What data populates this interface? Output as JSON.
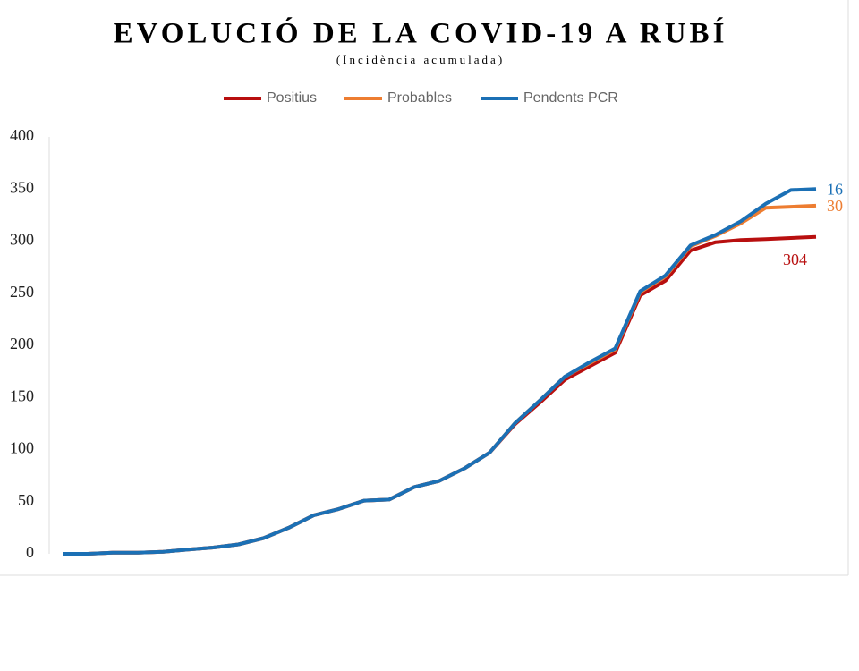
{
  "chart_data": {
    "type": "line",
    "stacked": true,
    "title": "EVOLUCIÓ DE LA COVID-19 A RUBÍ",
    "subtitle": "(Incidència acumulada)",
    "categories": [
      null,
      null,
      null,
      null,
      null,
      null,
      null,
      null,
      null,
      null,
      null,
      null,
      null,
      null,
      null,
      null,
      null,
      null,
      null,
      null,
      null,
      null,
      null,
      null,
      null,
      null,
      null,
      null,
      null,
      null,
      null
    ],
    "series": [
      {
        "name": "Positius",
        "color": "#b80f0f",
        "values": [
          0,
          0,
          1,
          1,
          2,
          4,
          6,
          9,
          15,
          25,
          37,
          43,
          51,
          52,
          64,
          70,
          82,
          97,
          124,
          145,
          167,
          180,
          193,
          248,
          262,
          291,
          299,
          301,
          302,
          303,
          304
        ]
      },
      {
        "name": "Probables",
        "color": "#ed7d31",
        "values": [
          0,
          0,
          0,
          0,
          0,
          0,
          0,
          0,
          0,
          0,
          0,
          0,
          0,
          0,
          0,
          0,
          0,
          0,
          1,
          2,
          3,
          3,
          3,
          3,
          4,
          4,
          6,
          16,
          30,
          30,
          30
        ]
      },
      {
        "name": "Pendents PCR",
        "color": "#1b70b5",
        "values": [
          0,
          0,
          0,
          0,
          0,
          0,
          0,
          0,
          0,
          0,
          0,
          0,
          0,
          0,
          0,
          0,
          0,
          0,
          0,
          0,
          0,
          1,
          1,
          1,
          1,
          1,
          1,
          2,
          4,
          16,
          16
        ]
      }
    ],
    "ylim": [
      0,
      400
    ],
    "yticks": [
      0,
      50,
      100,
      150,
      200,
      250,
      300,
      350,
      400
    ],
    "grid": false
  }
}
